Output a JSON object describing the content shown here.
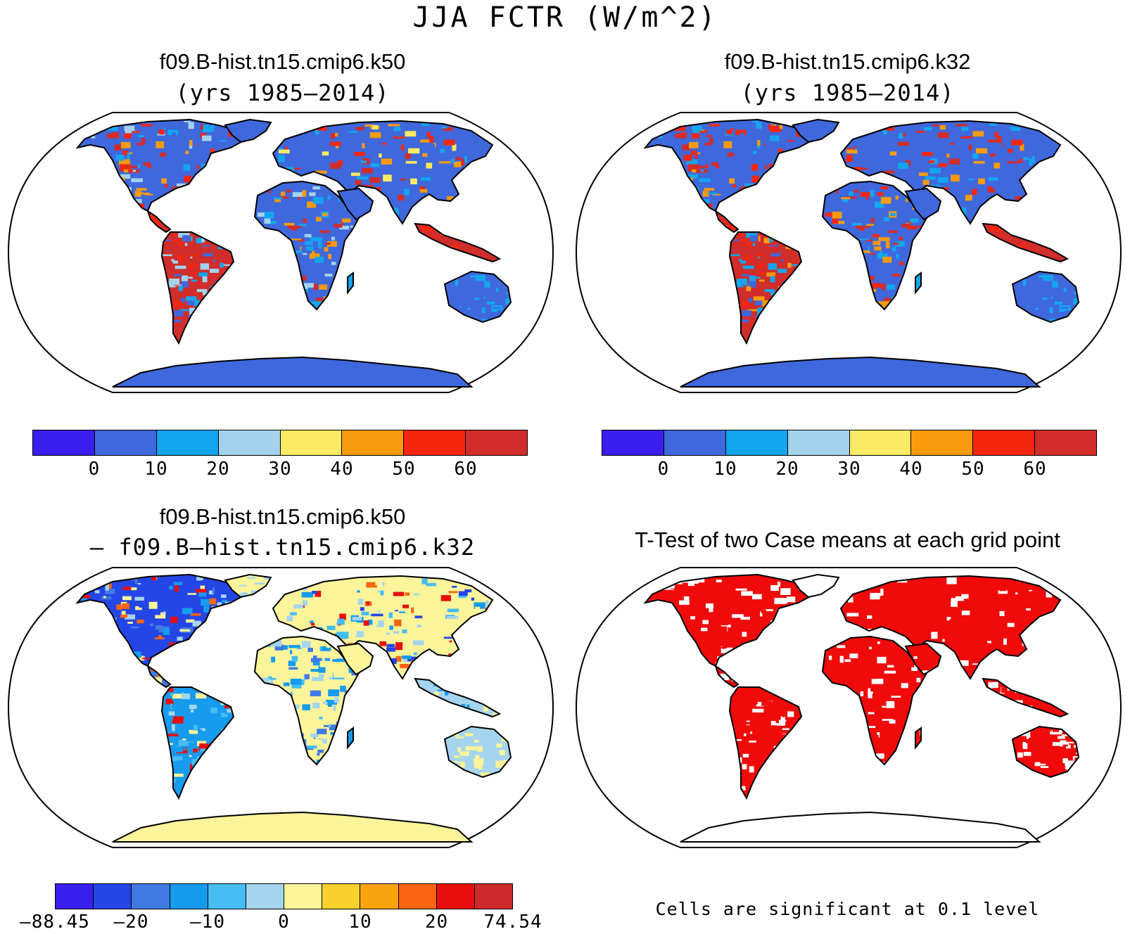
{
  "title": "JJA FCTR (W/m^2)",
  "panels": [
    {
      "id": "k50",
      "title": "f09.B-hist.tn15.cmip6.k50",
      "subtitle": "(yrs 1985–2014)",
      "colorbar": {
        "colors": [
          "#3b1ff0",
          "#3f68dd",
          "#14a5ef",
          "#a3d2ec",
          "#fbea63",
          "#f99b0c",
          "#f5260f",
          "#d12d2b"
        ],
        "labels": [
          "0",
          "10",
          "20",
          "30",
          "40",
          "50",
          "60"
        ]
      }
    },
    {
      "id": "k32",
      "title": "f09.B-hist.tn15.cmip6.k32",
      "subtitle": "(yrs 1985–2014)",
      "colorbar": {
        "colors": [
          "#3b1ff0",
          "#3f68dd",
          "#14a5ef",
          "#a3d2ec",
          "#fbea63",
          "#f99b0c",
          "#f5260f",
          "#d12d2b"
        ],
        "labels": [
          "0",
          "10",
          "20",
          "30",
          "40",
          "50",
          "60"
        ]
      }
    },
    {
      "id": "diff",
      "title": "f09.B-hist.tn15.cmip6.k50",
      "subtitle": "– f09.B–hist.tn15.cmip6.k32",
      "colorbar": {
        "colors": [
          "#3b1ff0",
          "#2446e6",
          "#3f7ae2",
          "#169bee",
          "#45bdf2",
          "#a5d5ee",
          "#fbf49a",
          "#f9d12c",
          "#f9a30f",
          "#f76412",
          "#e80e0e",
          "#cd2b2b"
        ],
        "labels": [
          "–88.45",
          "–20",
          "–10",
          "0",
          "10",
          "20",
          "74.54"
        ]
      }
    },
    {
      "id": "ttest",
      "title": "T-Test of two Case means at each grid point",
      "note": "Cells are significant at 0.1 level",
      "significant_color": "#f00a0a"
    }
  ],
  "icons": {
    "map": "world-map-robinson"
  }
}
